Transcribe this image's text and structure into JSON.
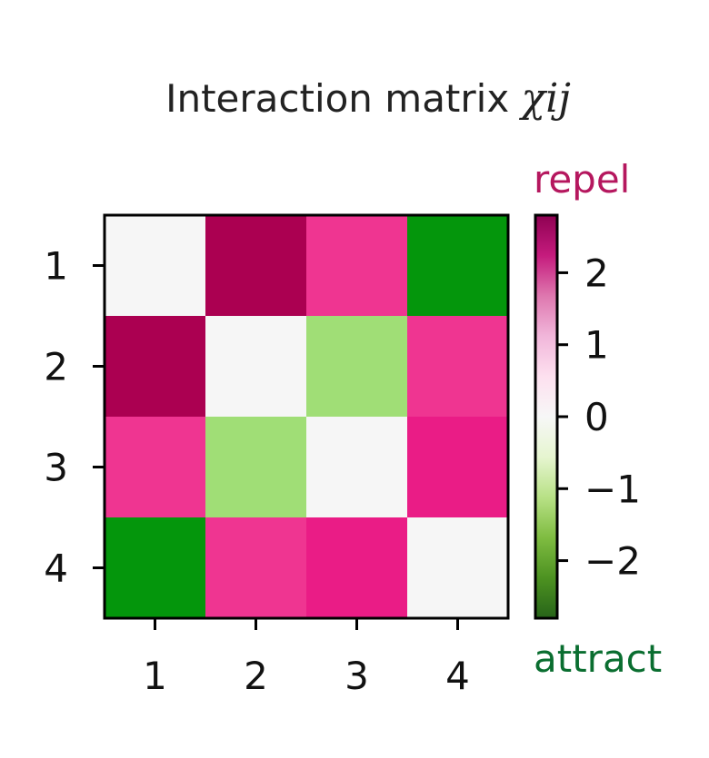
{
  "chart_data": {
    "type": "heatmap",
    "title": "Interaction matrix ",
    "title_symbol": "χij",
    "x_categories": [
      "1",
      "2",
      "3",
      "4"
    ],
    "y_categories": [
      "1",
      "2",
      "3",
      "4"
    ],
    "values": [
      [
        0.0,
        2.8,
        2.3,
        -2.6
      ],
      [
        2.8,
        0.0,
        -1.3,
        2.3
      ],
      [
        2.3,
        -1.3,
        0.0,
        2.5
      ],
      [
        -2.6,
        2.3,
        2.5,
        0.0
      ]
    ],
    "colormap": "PiYG",
    "vmin": -2.8,
    "vmax": 2.8,
    "colorbar": {
      "ticks": [
        2,
        1,
        0,
        -1,
        -2
      ],
      "tick_labels": [
        "2",
        "1",
        "0",
        "−1",
        "−2"
      ],
      "top_label": "repel",
      "bottom_label": "attract",
      "top_label_color": "#b5175e",
      "bottom_label_color": "#0a6e30"
    },
    "grid": false
  }
}
